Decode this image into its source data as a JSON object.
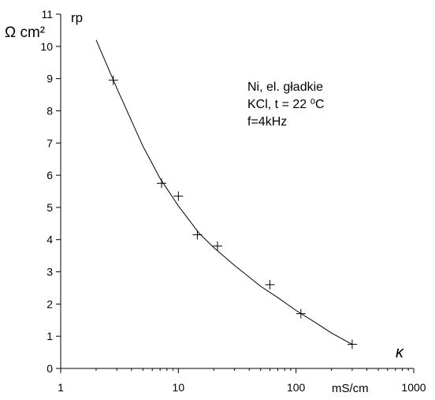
{
  "chart_data": {
    "type": "scatter",
    "title": "",
    "ylabel_unit": "Ω cm²",
    "ylabel_symbol": "rp",
    "xlabel_unit": "mS/cm",
    "xlabel_symbol": "κ",
    "x_scale": "log",
    "xlim": [
      1,
      1000
    ],
    "ylim": [
      0,
      11
    ],
    "x_ticks": [
      1,
      10,
      100,
      1000
    ],
    "x_tick_labels": [
      "1",
      "10",
      "100",
      "1000"
    ],
    "y_ticks": [
      0,
      1,
      2,
      3,
      4,
      5,
      6,
      7,
      8,
      9,
      10,
      11
    ],
    "y_tick_labels": [
      "0",
      "1",
      "2",
      "3",
      "4",
      "5",
      "6",
      "7",
      "8",
      "9",
      "10",
      "11"
    ],
    "grid": false,
    "annotations": [
      "Ni, el. gładkie",
      "KCl, t = 22 ⁰C",
      "f=4kHz"
    ],
    "series": [
      {
        "marker": "+",
        "points": [
          {
            "x": 2.8,
            "y": 8.95
          },
          {
            "x": 7.2,
            "y": 5.75
          },
          {
            "x": 10,
            "y": 5.35
          },
          {
            "x": 14.5,
            "y": 4.15
          },
          {
            "x": 21.5,
            "y": 3.8
          },
          {
            "x": 60,
            "y": 2.6
          },
          {
            "x": 110,
            "y": 1.7
          },
          {
            "x": 300,
            "y": 0.75
          }
        ]
      }
    ],
    "fit_curve": [
      {
        "x": 2.0,
        "y": 10.2
      },
      {
        "x": 3.0,
        "y": 8.7
      },
      {
        "x": 5.0,
        "y": 6.9
      },
      {
        "x": 7.0,
        "y": 5.9
      },
      {
        "x": 10.0,
        "y": 5.05
      },
      {
        "x": 15.0,
        "y": 4.2
      },
      {
        "x": 20.0,
        "y": 3.75
      },
      {
        "x": 30.0,
        "y": 3.2
      },
      {
        "x": 50.0,
        "y": 2.55
      },
      {
        "x": 70.0,
        "y": 2.2
      },
      {
        "x": 100.0,
        "y": 1.8
      },
      {
        "x": 150.0,
        "y": 1.4
      },
      {
        "x": 200.0,
        "y": 1.1
      },
      {
        "x": 300.0,
        "y": 0.75
      }
    ]
  }
}
